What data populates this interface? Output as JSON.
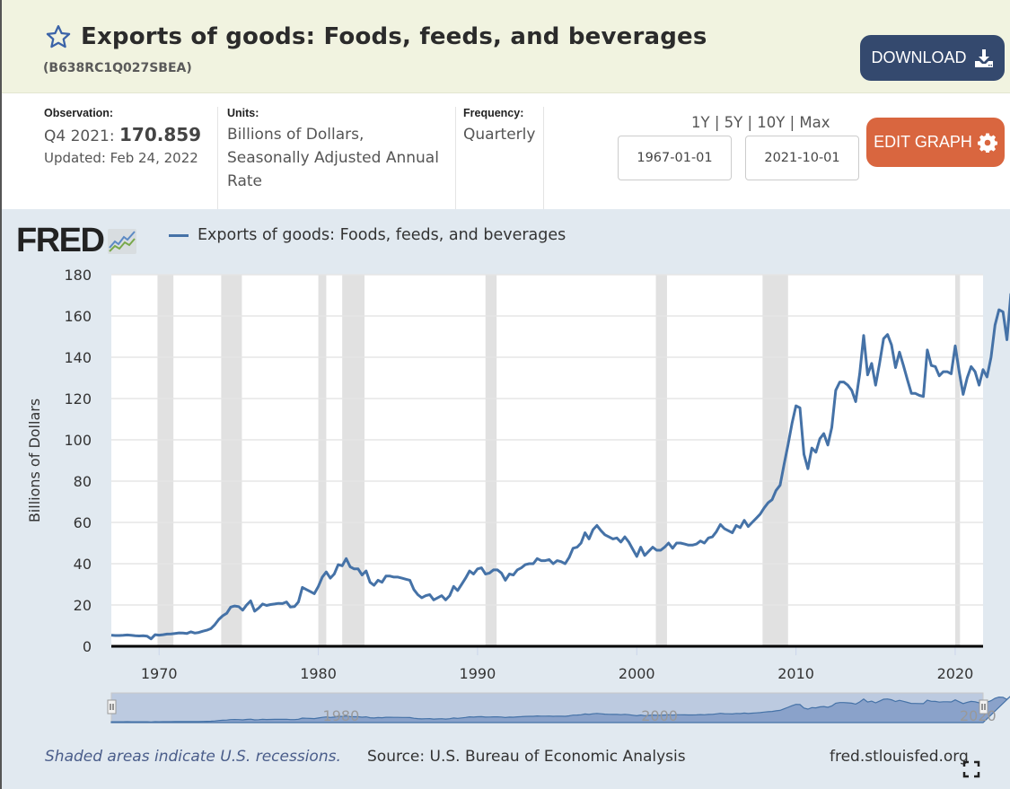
{
  "header": {
    "title": "Exports of goods: Foods, feeds, and beverages",
    "series_id": "(B638RC1Q027SBEA)",
    "download_label": "DOWNLOAD"
  },
  "meta": {
    "observation_label": "Observation:",
    "observation_period": "Q4 2021:",
    "observation_value": "170.859",
    "updated": "Updated: Feb 24, 2022",
    "units_label": "Units:",
    "units_line1": "Billions of Dollars,",
    "units_line2": "Seasonally Adjusted Annual",
    "units_line3": "Rate",
    "frequency_label": "Frequency:",
    "frequency_value": "Quarterly",
    "ranges": [
      "1Y",
      "5Y",
      "10Y",
      "Max"
    ],
    "range_sep": "|",
    "start_date": "1967-01-01",
    "end_date": "2021-10-01",
    "edit_label": "EDIT GRAPH"
  },
  "graph": {
    "logo": "FRED",
    "footer_note": "Shaded areas indicate U.S. recessions.",
    "footer_source": "Source: U.S. Bureau of Economic Analysis",
    "footer_url": "fred.stlouisfed.org",
    "navigator_labels": [
      "1980",
      "2000",
      "2020"
    ]
  },
  "colors": {
    "line": "#4572a7",
    "recession": "#e1e1e1",
    "download_btn": "#34496e",
    "edit_btn": "#d9663f",
    "header_bg": "#f1f3e0"
  },
  "chart_data": {
    "type": "line",
    "title": "Exports of goods: Foods, feeds, and beverages",
    "xlabel": "",
    "ylabel": "Billions of Dollars",
    "ylim": [
      0,
      180
    ],
    "xlim": [
      1967.0,
      2021.75
    ],
    "yticks": [
      0,
      20,
      40,
      60,
      80,
      100,
      120,
      140,
      160,
      180
    ],
    "xticks": [
      1970,
      1980,
      1990,
      2000,
      2010,
      2020
    ],
    "grid": true,
    "legend": "top-left",
    "recessions": [
      [
        1969.9,
        1970.9
      ],
      [
        1973.9,
        1975.2
      ],
      [
        1980.0,
        1980.5
      ],
      [
        1981.5,
        1982.9
      ],
      [
        1990.5,
        1991.2
      ],
      [
        2001.2,
        2001.9
      ],
      [
        2007.9,
        2009.5
      ],
      [
        2020.0,
        2020.3
      ]
    ],
    "series": [
      {
        "name": "Exports of goods: Foods, feeds, and beverages",
        "start": "1967-Q1",
        "frequency": "quarterly",
        "values": [
          5.4,
          5.2,
          5.2,
          5.3,
          5.5,
          5.3,
          5.1,
          5.0,
          5.1,
          4.9,
          3.6,
          5.6,
          5.4,
          5.6,
          5.9,
          6.0,
          6.2,
          6.5,
          6.4,
          6.2,
          7.0,
          6.4,
          6.7,
          7.3,
          7.8,
          8.5,
          10.5,
          13.0,
          14.8,
          16.0,
          19.0,
          19.5,
          19.2,
          17.5,
          20.0,
          22.0,
          17.0,
          18.5,
          20.5,
          19.8,
          20.2,
          20.5,
          20.8,
          20.7,
          21.5,
          19.0,
          19.2,
          21.5,
          28.5,
          27.5,
          26.5,
          25.5,
          29.0,
          33.5,
          36.0,
          33.0,
          35.0,
          39.5,
          39.0,
          42.5,
          38.5,
          37.5,
          37.5,
          34.5,
          36.5,
          31.0,
          29.5,
          32.0,
          31.0,
          34.0,
          34.0,
          33.5,
          33.5,
          33.0,
          32.5,
          32.0,
          27.5,
          25.0,
          23.5,
          24.5,
          25.0,
          22.5,
          23.5,
          24.5,
          22.5,
          24.5,
          29.0,
          27.0,
          30.0,
          33.0,
          36.5,
          35.0,
          37.5,
          38.0,
          35.0,
          35.5,
          37.0,
          37.0,
          35.5,
          32.0,
          35.0,
          34.5,
          37.0,
          38.0,
          39.5,
          40.0,
          40.0,
          42.5,
          41.5,
          41.5,
          42.0,
          40.0,
          41.5,
          41.0,
          40.0,
          43.0,
          47.5,
          48.0,
          50.0,
          55.0,
          52.0,
          56.5,
          58.5,
          56.0,
          54.0,
          53.0,
          52.0,
          52.5,
          50.5,
          53.0,
          50.5,
          47.0,
          43.5,
          48.0,
          44.0,
          46.0,
          48.0,
          46.5,
          46.5,
          48.0,
          50.0,
          47.5,
          50.0,
          50.0,
          49.5,
          49.0,
          49.0,
          49.5,
          51.0,
          50.0,
          52.5,
          53.0,
          55.5,
          59.0,
          57.0,
          56.0,
          55.0,
          58.5,
          57.5,
          61.0,
          58.0,
          60.0,
          62.0,
          64.0,
          67.0,
          69.5,
          71.0,
          75.5,
          78.0,
          88.0,
          97.5,
          108.0,
          116.5,
          115.5,
          93.0,
          86.0,
          96.0,
          94.0,
          100.5,
          103.0,
          97.5,
          106.0,
          124.0,
          128.0,
          128.0,
          126.5,
          124.0,
          118.5,
          132.0,
          150.5,
          131.5,
          137.0,
          126.5,
          137.0,
          149.0,
          151.0,
          146.0,
          135.0,
          142.5,
          136.0,
          129.0,
          122.5,
          122.5,
          121.5,
          121.0,
          143.5,
          136.0,
          135.5,
          131.0,
          133.0,
          133.0,
          132.0,
          145.5,
          133.0,
          122.0,
          130.0,
          135.5,
          133.0,
          126.5,
          134.0,
          130.5,
          140.0,
          155.5,
          163.0,
          162.0,
          148.5,
          170.9
        ]
      }
    ]
  }
}
